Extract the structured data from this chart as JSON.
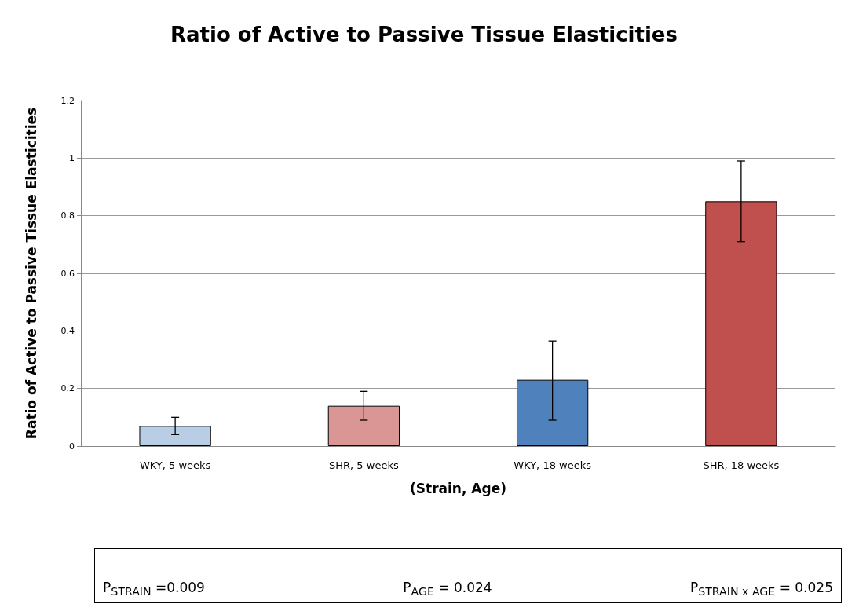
{
  "chart_data": {
    "type": "bar",
    "title": "Ratio of Active to Passive Tissue Elasticities",
    "xlabel": "(Strain, Age)",
    "ylabel": "Ratio of Active to Passive Tissue Elasticities",
    "categories": [
      "WKY, 5 weeks",
      "SHR, 5 weeks",
      "WKY, 18 weeks",
      "SHR, 18 weeks"
    ],
    "values": [
      0.07,
      0.14,
      0.23,
      0.85
    ],
    "colors": [
      "#b9cde5",
      "#d99694",
      "#4f81bd",
      "#c0504d"
    ],
    "errors": [
      0.03,
      0.05,
      [
        0.09,
        0.365
      ],
      0.14
    ],
    "ylim": [
      0,
      1.2
    ],
    "yticks": [
      0,
      0.2,
      0.4,
      0.6,
      0.8,
      1,
      1.2
    ],
    "grid": "y",
    "annotations": [
      "P$_{STRAIN}$ =0.009",
      "P$_{AGE}$ = 0.024",
      "P$_{STRAIN x AGE}$ = 0.025"
    ]
  }
}
